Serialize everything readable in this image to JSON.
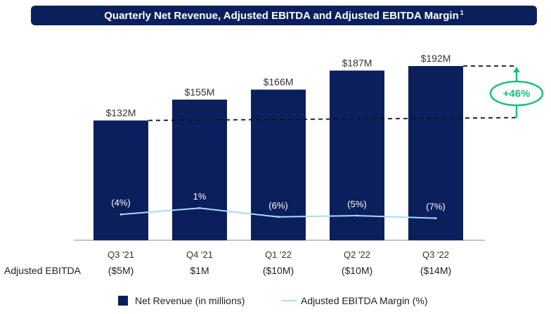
{
  "title": "Quarterly Net Revenue, Adjusted EBITDA and Adjusted EBITDA Margin",
  "title_footnote": "1",
  "growth_label": "+46%",
  "ebitda_row_label": "Adjusted EBITDA",
  "colors": {
    "bar": "#0b1f5c",
    "margin_line": "#a8dcf5",
    "growth_accent": "#1bbf7a",
    "title_bg": "#0b1f5c"
  },
  "legend": {
    "bar_label": "Net Revenue (in millions)",
    "line_label": "Adjusted EBITDA Margin (%)"
  },
  "chart_data": {
    "type": "bar",
    "categories": [
      "Q3 '21",
      "Q4 '21",
      "Q1 '22",
      "Q2 '22",
      "Q3 '22"
    ],
    "series": [
      {
        "name": "Net Revenue (in millions)",
        "type": "bar",
        "values": [
          132,
          155,
          166,
          187,
          192
        ],
        "labels": [
          "$132M",
          "$155M",
          "$166M",
          "$187M",
          "$192M"
        ]
      },
      {
        "name": "Adjusted EBITDA Margin (%)",
        "type": "line",
        "values": [
          -4,
          1,
          -6,
          -5,
          -7
        ],
        "labels": [
          "(4%)",
          "1%",
          "(6%)",
          "(5%)",
          "(7%)"
        ]
      }
    ],
    "adjusted_ebitda": [
      "($5M)",
      "$1M",
      "($10M)",
      "($10M)",
      "($14M)"
    ],
    "ylim": [
      0,
      192
    ],
    "grid": false,
    "legend_position": "bottom"
  }
}
